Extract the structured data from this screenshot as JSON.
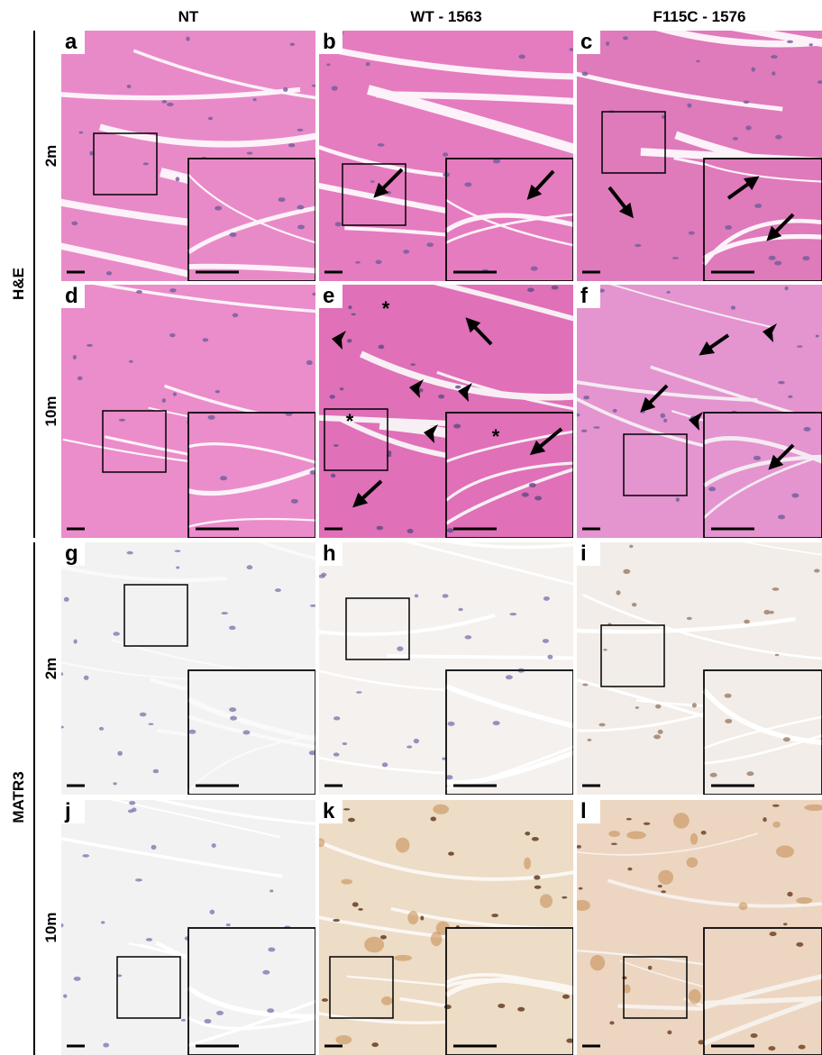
{
  "columns": [
    "NT",
    "WT - 1563",
    "F115C - 1576"
  ],
  "stains": [
    "H&E",
    "MATR3"
  ],
  "timepoints": [
    "2m",
    "10m",
    "2m",
    "10m"
  ],
  "panels": [
    {
      "letter": "a"
    },
    {
      "letter": "b"
    },
    {
      "letter": "c"
    },
    {
      "letter": "d"
    },
    {
      "letter": "e",
      "marks": [
        "*",
        "*",
        "*"
      ]
    },
    {
      "letter": "f"
    },
    {
      "letter": "g"
    },
    {
      "letter": "h"
    },
    {
      "letter": "i"
    },
    {
      "letter": "j"
    },
    {
      "letter": "k"
    },
    {
      "letter": "l"
    }
  ]
}
